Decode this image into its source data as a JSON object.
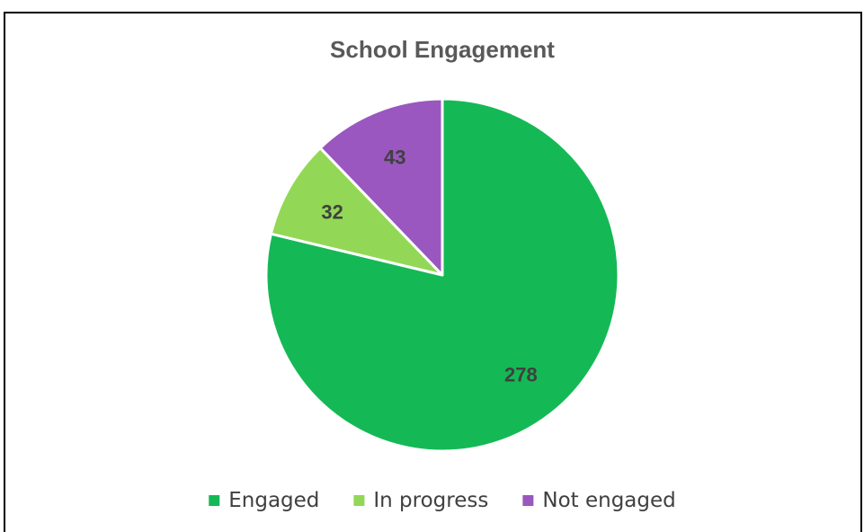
{
  "chart_data": {
    "type": "pie",
    "title": "School Engagement",
    "categories": [
      "Engaged",
      "In progress",
      "Not engaged"
    ],
    "values": [
      278,
      32,
      43
    ],
    "colors": [
      "#14b955",
      "#92d856",
      "#9a57bf"
    ],
    "data_labels": [
      "278",
      "32",
      "43"
    ],
    "start_angle_deg": 0,
    "direction": "clockwise",
    "legend_position": "bottom"
  }
}
